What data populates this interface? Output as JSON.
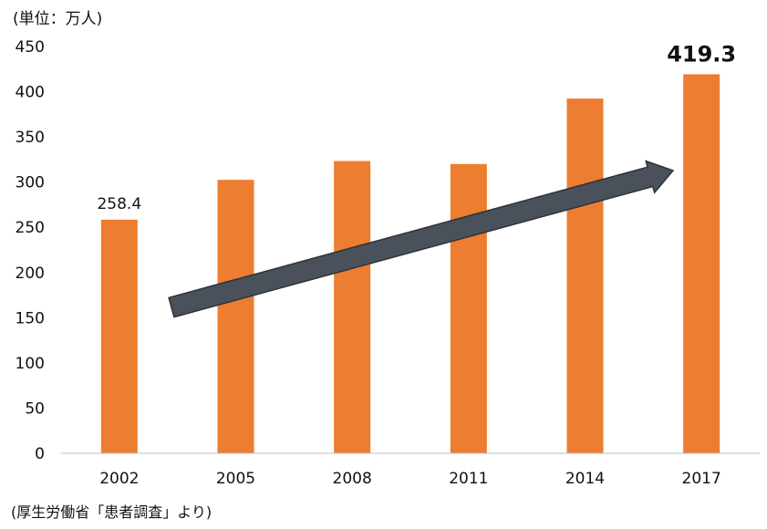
{
  "unit_label": "(単位：万人)",
  "source_label": "(厚生労働省「患者調査」より)",
  "colors": {
    "bar": "#ED7D31",
    "arrow": "#4B515A",
    "axis": "#BFBFBF",
    "text": "#111111"
  },
  "chart_data": {
    "type": "bar",
    "title": "",
    "xlabel": "",
    "ylabel": "",
    "categories": [
      "2002",
      "2005",
      "2008",
      "2011",
      "2014",
      "2017"
    ],
    "values": [
      258.4,
      302.5,
      323.3,
      320.0,
      392.4,
      419.3
    ],
    "ylim": [
      0,
      450
    ],
    "yticks": [
      "0",
      "50",
      "100",
      "150",
      "200",
      "250",
      "300",
      "350",
      "400",
      "450"
    ],
    "grid": false,
    "legend": "none",
    "data_labels": [
      {
        "category": "2002",
        "text": "258.4",
        "bold": false
      },
      {
        "category": "2017",
        "text": "419.3",
        "bold": true
      }
    ],
    "annotation": "upward-trend-arrow"
  }
}
